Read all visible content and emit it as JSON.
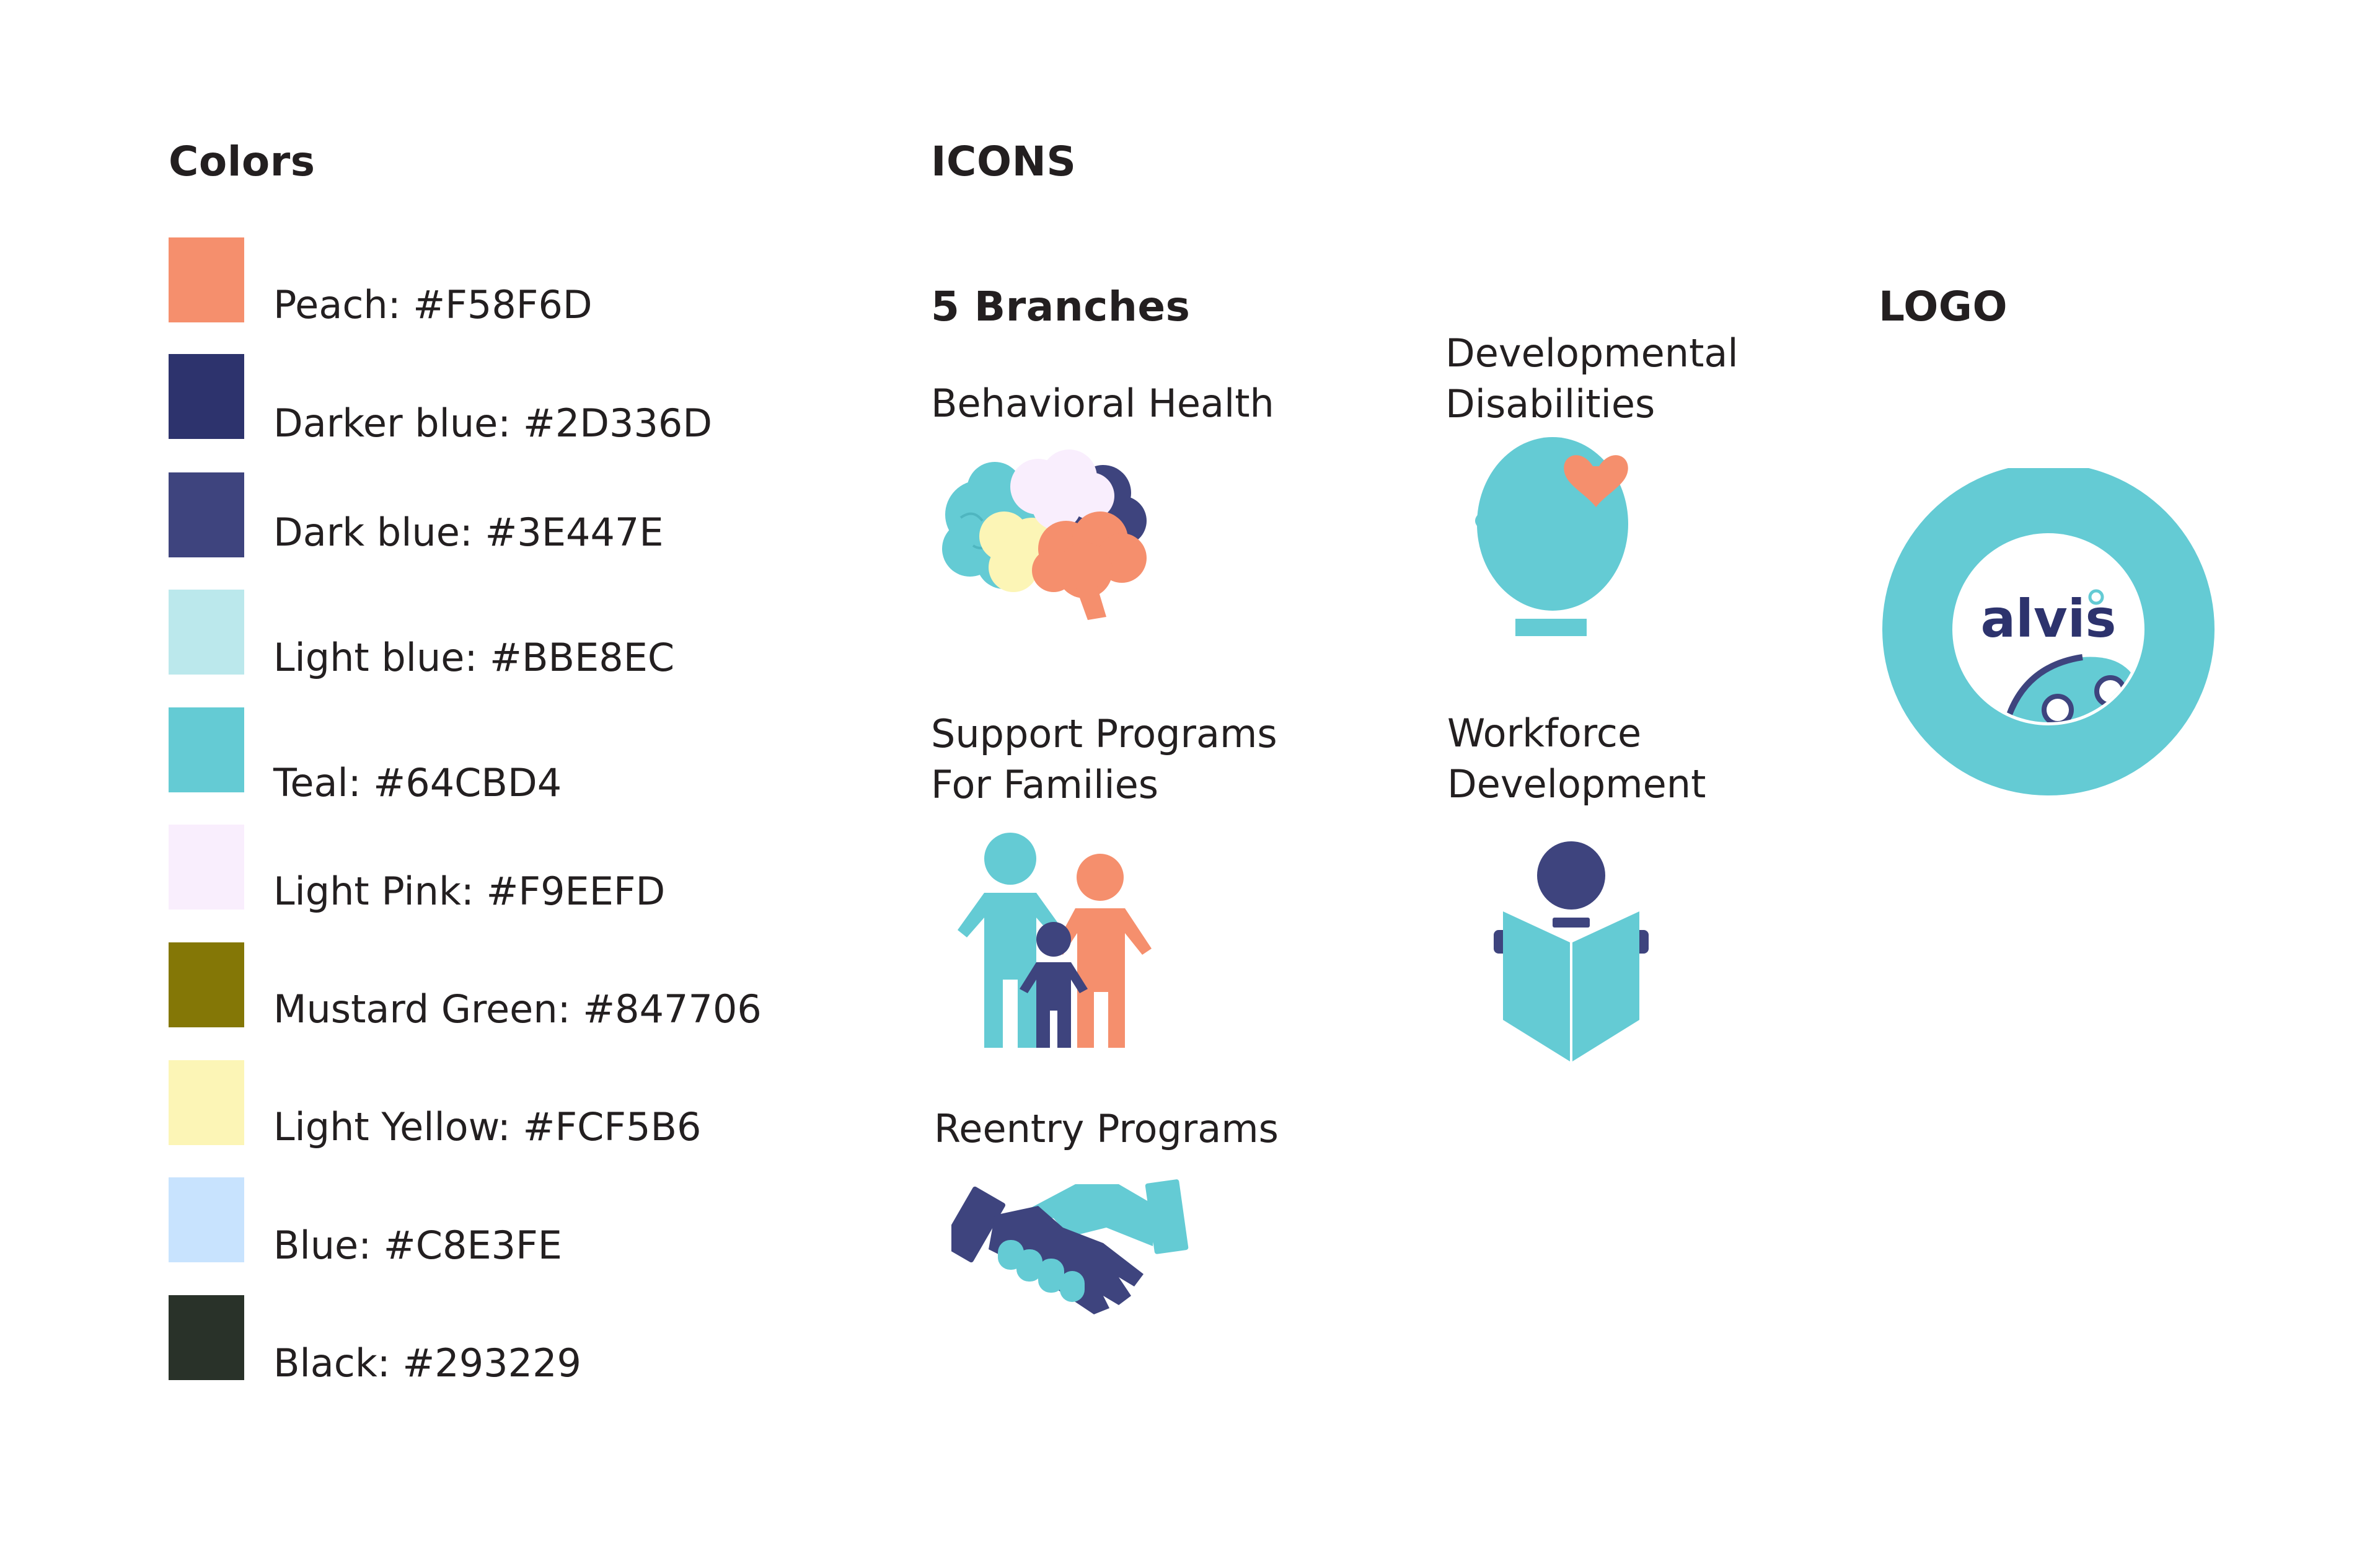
{
  "colors_section": {
    "heading": "Colors",
    "swatches": [
      {
        "label": "Peach: #F58F6D",
        "hex": "#F58F6D"
      },
      {
        "label": "Darker blue: #2D336D",
        "hex": "#2D336D"
      },
      {
        "label": "Dark blue: #3E447E",
        "hex": "#3E447E"
      },
      {
        "label": "Light blue: #BBE8EC",
        "hex": "#BBE8EC"
      },
      {
        "label": "Teal: #64CBD4",
        "hex": "#64CBD4"
      },
      {
        "label": "Light Pink: #F9EEFD",
        "hex": "#F9EEFD"
      },
      {
        "label": "Mustard Green: #847706",
        "hex": "#847706"
      },
      {
        "label": "Light Yellow: #FCF5B6",
        "hex": "#FCF5B6"
      },
      {
        "label": "Blue: #C8E3FE",
        "hex": "#C8E3FE"
      },
      {
        "label": "Black: #293229",
        "hex": "#293229"
      }
    ]
  },
  "icons_section": {
    "heading": "ICONS",
    "subheading": "5 Branches",
    "branches": [
      {
        "line1": "Behavioral Health",
        "line2": "",
        "icon": "brain-icon"
      },
      {
        "line1": "Developmental",
        "line2": "Disabilities",
        "icon": "head-heart-icon"
      },
      {
        "line1": "Support Programs",
        "line2": "For Families",
        "icon": "family-icon"
      },
      {
        "line1": "Workforce",
        "line2": "Development",
        "icon": "reading-person-icon"
      },
      {
        "line1": "Reentry Programs",
        "line2": "",
        "icon": "handshake-icon"
      }
    ]
  },
  "logo_section": {
    "heading": "LOGO",
    "wordmark": "alvis",
    "icon": "alvis-logo"
  }
}
